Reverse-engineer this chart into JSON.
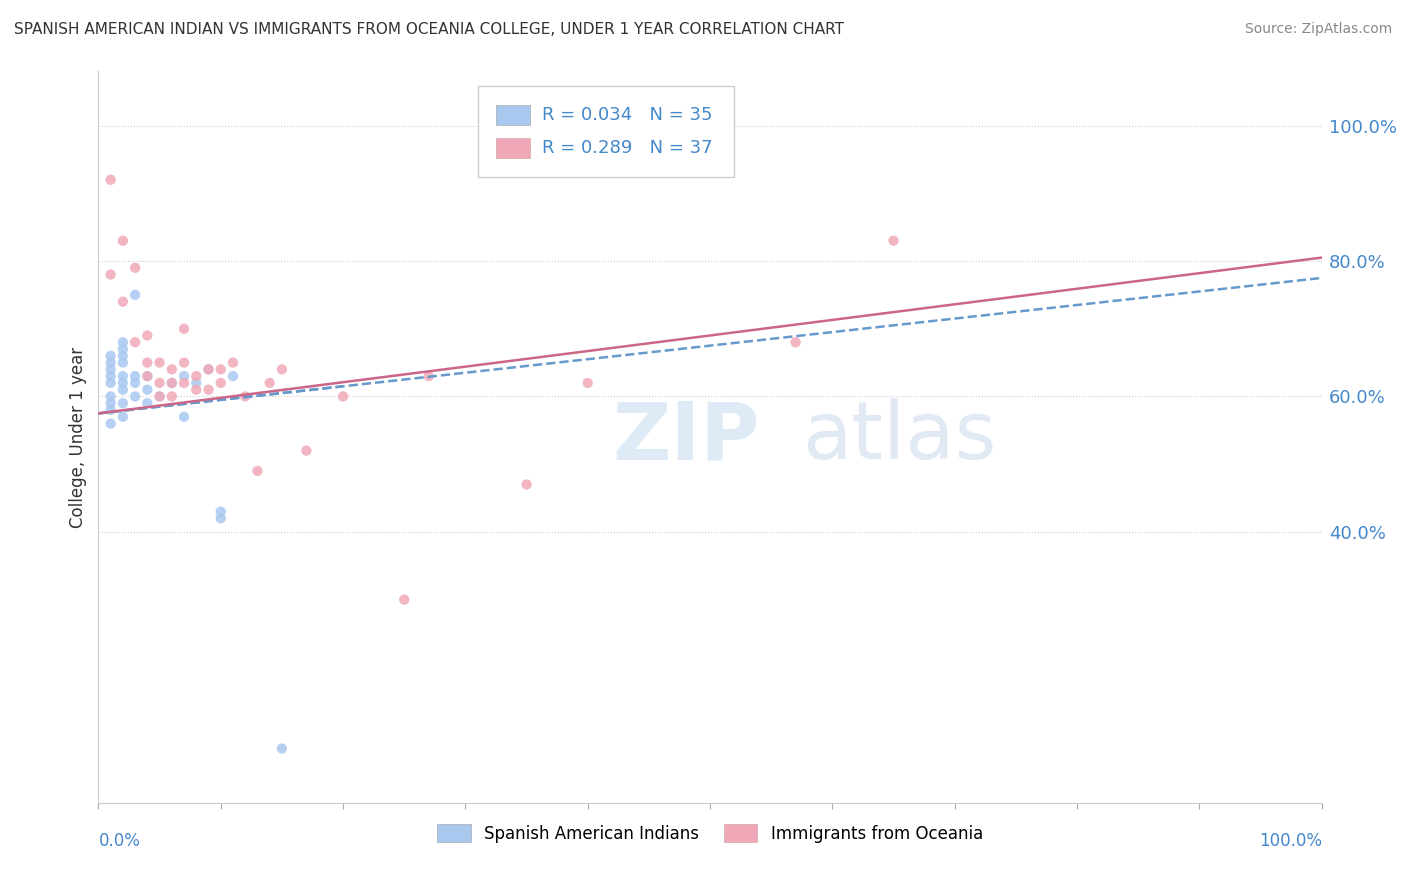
{
  "title": "SPANISH AMERICAN INDIAN VS IMMIGRANTS FROM OCEANIA COLLEGE, UNDER 1 YEAR CORRELATION CHART",
  "source": "Source: ZipAtlas.com",
  "ylabel": "College, Under 1 year",
  "ylabel_ticks": [
    "40.0%",
    "60.0%",
    "80.0%",
    "100.0%"
  ],
  "ylabel_tick_vals": [
    0.4,
    0.6,
    0.8,
    1.0
  ],
  "blue_scatter_x": [
    0.01,
    0.01,
    0.01,
    0.01,
    0.01,
    0.01,
    0.01,
    0.01,
    0.01,
    0.02,
    0.02,
    0.02,
    0.02,
    0.02,
    0.02,
    0.02,
    0.02,
    0.02,
    0.03,
    0.03,
    0.03,
    0.03,
    0.04,
    0.04,
    0.04,
    0.05,
    0.06,
    0.07,
    0.07,
    0.08,
    0.09,
    0.1,
    0.1,
    0.11,
    0.15
  ],
  "blue_scatter_y": [
    0.56,
    0.58,
    0.59,
    0.6,
    0.62,
    0.63,
    0.64,
    0.65,
    0.66,
    0.57,
    0.59,
    0.61,
    0.62,
    0.63,
    0.65,
    0.66,
    0.67,
    0.68,
    0.6,
    0.62,
    0.63,
    0.75,
    0.59,
    0.61,
    0.63,
    0.6,
    0.62,
    0.57,
    0.63,
    0.62,
    0.64,
    0.42,
    0.43,
    0.63,
    0.08
  ],
  "pink_scatter_x": [
    0.01,
    0.01,
    0.02,
    0.02,
    0.03,
    0.03,
    0.04,
    0.04,
    0.04,
    0.05,
    0.05,
    0.05,
    0.06,
    0.06,
    0.06,
    0.07,
    0.07,
    0.07,
    0.08,
    0.08,
    0.09,
    0.09,
    0.1,
    0.1,
    0.11,
    0.12,
    0.13,
    0.14,
    0.15,
    0.17,
    0.2,
    0.25,
    0.27,
    0.35,
    0.4,
    0.57,
    0.65
  ],
  "pink_scatter_y": [
    0.92,
    0.78,
    0.83,
    0.74,
    0.79,
    0.68,
    0.69,
    0.63,
    0.65,
    0.6,
    0.62,
    0.65,
    0.6,
    0.62,
    0.64,
    0.62,
    0.65,
    0.7,
    0.61,
    0.63,
    0.61,
    0.64,
    0.62,
    0.64,
    0.65,
    0.6,
    0.49,
    0.62,
    0.64,
    0.52,
    0.6,
    0.3,
    0.63,
    0.47,
    0.62,
    0.68,
    0.83
  ],
  "blue_line_x": [
    0.0,
    0.2
  ],
  "blue_line_y_start": 0.575,
  "blue_line_y_end": 0.615,
  "pink_line_x": [
    0.0,
    1.0
  ],
  "pink_line_y_start": 0.575,
  "pink_line_y_end": 0.805,
  "R_blue": "0.034",
  "N_blue": "35",
  "R_pink": "0.289",
  "N_pink": "37",
  "blue_color": "#a8c8f0",
  "pink_color": "#f0a8b8",
  "blue_line_color": "#6699cc",
  "pink_line_color": "#cc6688",
  "blue_text_color": "#4488cc",
  "right_axis_color": "#4488cc",
  "legend_label_1": "Spanish American Indians",
  "legend_label_2": "Immigrants from Oceania",
  "xlim": [
    0.0,
    1.0
  ],
  "ylim": [
    0.0,
    1.08
  ]
}
